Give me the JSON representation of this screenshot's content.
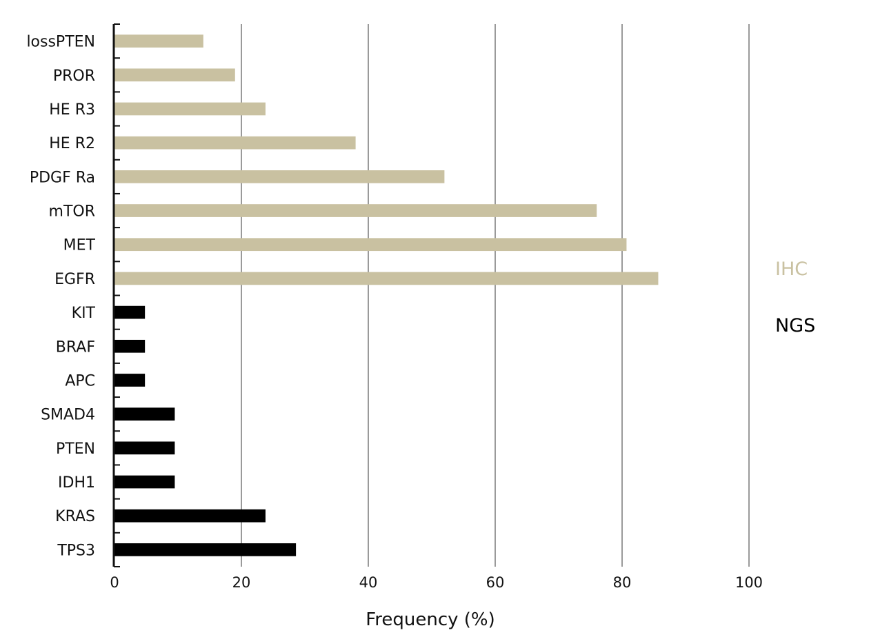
{
  "chart_data": {
    "type": "bar",
    "orientation": "horizontal",
    "xlabel": "Frequency (%)",
    "ylabel": "",
    "xlim": [
      0,
      100
    ],
    "xticks": [
      0,
      20,
      40,
      60,
      80,
      100
    ],
    "grid": "vertical",
    "legend_placement": "right",
    "series": [
      {
        "name": "IHC",
        "color": "#c9c1a1",
        "categories": [
          "lossPTEN",
          "PROR",
          "HE R3",
          "HE R2",
          "PDGF Ra",
          "mTOR",
          "MET",
          "EGFR"
        ],
        "values": [
          14,
          19,
          23.8,
          38,
          52,
          76,
          80.7,
          85.7
        ]
      },
      {
        "name": "NGS",
        "color": "#000000",
        "categories": [
          "KIT",
          "BRAF",
          "APC",
          "SMAD4",
          "PTEN",
          "IDH1",
          "KRAS",
          "TPS3"
        ],
        "values": [
          4.8,
          4.8,
          4.8,
          9.5,
          9.5,
          9.5,
          23.8,
          28.6
        ]
      }
    ]
  }
}
